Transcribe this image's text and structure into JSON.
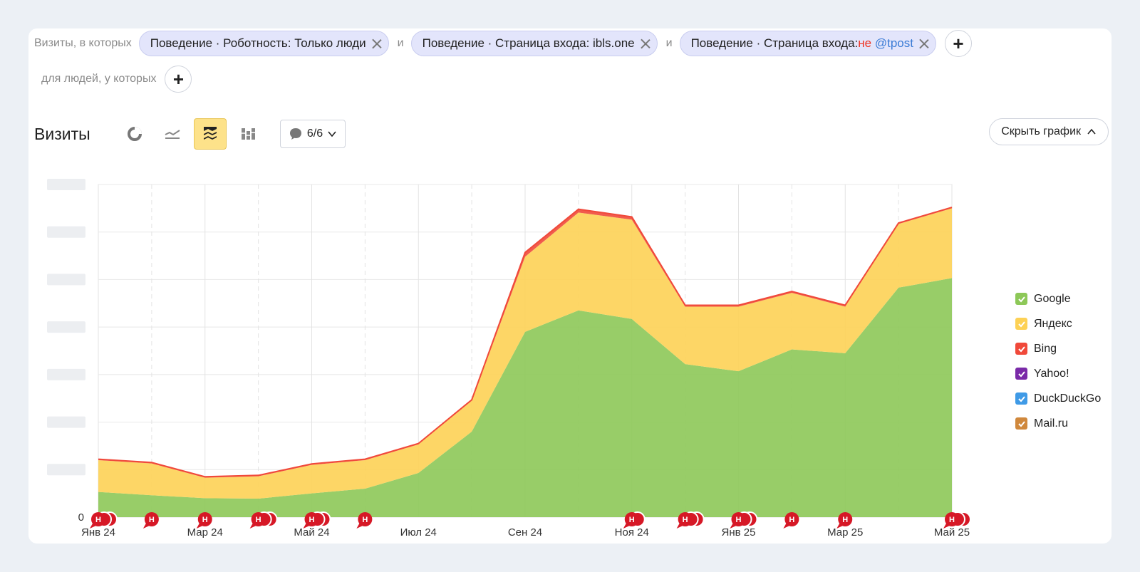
{
  "filters": {
    "prefix": "Визиты, в которых",
    "and_label": "и",
    "chips": [
      {
        "text": "Поведение · Роботность: Только люди"
      },
      {
        "text": "Поведение · Страница входа: ibls.one"
      },
      {
        "text": "Поведение · Страница входа: ",
        "negation": "не",
        "value": "@tpost"
      }
    ],
    "people_prefix": "для людей, у которых"
  },
  "toolbar": {
    "title": "Визиты",
    "annotations_count": "6/6",
    "hide_chart_label": "Скрыть график",
    "chart_types": [
      {
        "name": "pie-chart-icon",
        "active": false
      },
      {
        "name": "line-chart-icon",
        "active": false
      },
      {
        "name": "area-chart-icon",
        "active": true
      },
      {
        "name": "bar-chart-icon",
        "active": false
      }
    ]
  },
  "chart_data": {
    "type": "area",
    "stacked": true,
    "y_tick_labels": [
      "0",
      "",
      "",
      "",
      "",
      "",
      "",
      ""
    ],
    "x_tick_labels": [
      "Янв 24",
      "Мар 24",
      "Май 24",
      "Июл 24",
      "Сен 24",
      "Ноя 24",
      "Янв 25",
      "Мар 25",
      "Май 25"
    ],
    "x": [
      "Янв 24",
      "Фев 24",
      "Мар 24",
      "Апр 24",
      "Май 24",
      "Июн 24",
      "Июл 24",
      "Авг 24",
      "Сен 24",
      "Окт 24",
      "Ноя 24",
      "Дек 24",
      "Янв 25",
      "Фев 25",
      "Мар 25",
      "Апр 25",
      "Май 25"
    ],
    "ylim": [
      0,
      7
    ],
    "series": [
      {
        "name": "Google",
        "color": "#8dc858",
        "values": [
          0.53,
          0.46,
          0.4,
          0.39,
          0.5,
          0.6,
          0.93,
          1.8,
          3.9,
          4.35,
          4.17,
          3.22,
          3.07,
          3.53,
          3.45,
          4.83,
          5.03
        ]
      },
      {
        "name": "Яндекс",
        "color": "#fdd155",
        "values": [
          0.67,
          0.67,
          0.43,
          0.47,
          0.6,
          0.6,
          0.6,
          0.65,
          1.58,
          2.06,
          2.09,
          1.21,
          1.36,
          1.19,
          0.98,
          1.34,
          1.47
        ]
      },
      {
        "name": "Bing",
        "color": "#f0493a",
        "values": [
          0.02,
          0.02,
          0.02,
          0.02,
          0.02,
          0.02,
          0.02,
          0.02,
          0.09,
          0.07,
          0.06,
          0.03,
          0.03,
          0.03,
          0.03,
          0.02,
          0.02
        ]
      },
      {
        "name": "Yahoo!",
        "color": "#7a2aa8",
        "values": [
          0,
          0,
          0,
          0,
          0,
          0,
          0,
          0,
          0,
          0,
          0,
          0,
          0,
          0,
          0,
          0,
          0
        ]
      },
      {
        "name": "DuckDuckGo",
        "color": "#3f9ae6",
        "values": [
          0,
          0,
          0,
          0,
          0,
          0,
          0,
          0,
          0,
          0,
          0,
          0,
          0,
          0,
          0,
          0,
          0
        ]
      },
      {
        "name": "Mail.ru",
        "color": "#d0883c",
        "values": [
          0,
          0,
          0,
          0,
          0,
          0,
          0,
          0,
          0,
          0,
          0,
          0,
          0,
          0,
          0,
          0,
          0
        ]
      }
    ],
    "annotations": [
      {
        "label": "Н",
        "month_index": 0,
        "count": 3
      },
      {
        "label": "Н",
        "month_index": 1,
        "count": 1
      },
      {
        "label": "Н",
        "month_index": 2,
        "count": 1
      },
      {
        "label": "Н",
        "month_index": 3,
        "count": 3
      },
      {
        "label": "Н",
        "month_index": 4,
        "count": 3
      },
      {
        "label": "Н",
        "month_index": 5,
        "count": 1
      },
      {
        "label": "Н",
        "month_index": 10,
        "count": 2
      },
      {
        "label": "Н",
        "month_index": 11,
        "count": 3
      },
      {
        "label": "Н",
        "month_index": 12,
        "count": 3
      },
      {
        "label": "Н",
        "month_index": 13,
        "count": 1
      },
      {
        "label": "Н",
        "month_index": 14,
        "count": 1
      },
      {
        "label": "Н",
        "month_index": 16,
        "count": 3
      }
    ],
    "grid": true,
    "legend_position": "right"
  }
}
